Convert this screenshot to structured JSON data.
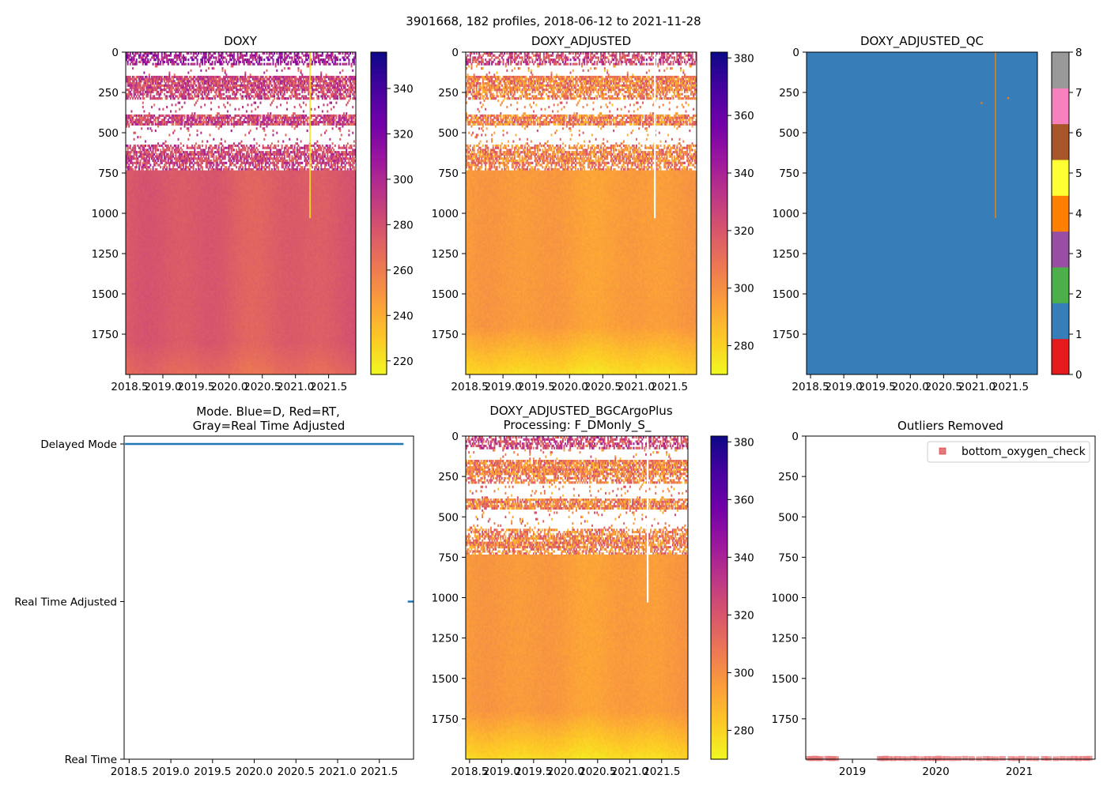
{
  "figure": {
    "suptitle": "3901668, 182 profiles, 2018-06-12 to 2021-11-28"
  },
  "colors": {
    "plasma": [
      "#0d0887",
      "#46039f",
      "#7201a8",
      "#9c179e",
      "#bd3786",
      "#d8576b",
      "#ed7953",
      "#fb9f3a",
      "#fdca26",
      "#f0f921"
    ],
    "qc_classes": [
      "#e41a1c",
      "#377eb8",
      "#4daf4a",
      "#984ea3",
      "#ff7f00",
      "#ffff33",
      "#a65628",
      "#f781bf",
      "#999999"
    ],
    "mode_line": "#1f77b4",
    "outlier": "#e8787a"
  },
  "chart_data": [
    {
      "id": "doxy",
      "type": "heatmap",
      "title": "DOXY",
      "x_ticks": [
        "2018.5",
        "2019.0",
        "2019.5",
        "2020.0",
        "2020.5",
        "2021.0",
        "2021.5"
      ],
      "x_tick_values": [
        2018.5,
        2019.0,
        2019.5,
        2020.0,
        2020.5,
        2021.0,
        2021.5
      ],
      "xlim": [
        2018.44,
        2021.91
      ],
      "y_ticks": [
        "0",
        "250",
        "500",
        "750",
        "1000",
        "1250",
        "1500",
        "1750"
      ],
      "y_tick_values": [
        0,
        250,
        500,
        750,
        1000,
        1250,
        1500,
        1750
      ],
      "ylim": [
        2000,
        0
      ],
      "colorbar": {
        "ticks": [
          "220",
          "240",
          "260",
          "280",
          "300",
          "320",
          "340"
        ],
        "tick_values": [
          220,
          240,
          260,
          280,
          300,
          320,
          340
        ],
        "range": [
          214,
          356
        ]
      }
    },
    {
      "id": "doxy_adjusted",
      "type": "heatmap",
      "title": "DOXY_ADJUSTED",
      "x_ticks": [
        "2018.5",
        "2019.0",
        "2019.5",
        "2020.0",
        "2020.5",
        "2021.0",
        "2021.5"
      ],
      "x_tick_values": [
        2018.5,
        2019.0,
        2019.5,
        2020.0,
        2020.5,
        2021.0,
        2021.5
      ],
      "xlim": [
        2018.44,
        2021.91
      ],
      "y_ticks": [
        "0",
        "250",
        "500",
        "750",
        "1000",
        "1250",
        "1500",
        "1750"
      ],
      "y_tick_values": [
        0,
        250,
        500,
        750,
        1000,
        1250,
        1500,
        1750
      ],
      "ylim": [
        2000,
        0
      ],
      "colorbar": {
        "ticks": [
          "280",
          "300",
          "320",
          "340",
          "360",
          "380"
        ],
        "tick_values": [
          280,
          300,
          320,
          340,
          360,
          380
        ],
        "range": [
          270,
          382
        ]
      }
    },
    {
      "id": "doxy_adjusted_qc",
      "type": "heatmap",
      "title": "DOXY_ADJUSTED_QC",
      "x_ticks": [
        "2018.5",
        "2019.0",
        "2019.5",
        "2020.0",
        "2020.5",
        "2021.0",
        "2021.5"
      ],
      "x_tick_values": [
        2018.5,
        2019.0,
        2019.5,
        2020.0,
        2020.5,
        2021.0,
        2021.5
      ],
      "xlim": [
        2018.44,
        2021.91
      ],
      "y_ticks": [
        "0",
        "250",
        "500",
        "750",
        "1000",
        "1250",
        "1500",
        "1750"
      ],
      "y_tick_values": [
        0,
        250,
        500,
        750,
        1000,
        1250,
        1500,
        1750
      ],
      "ylim": [
        2000,
        0
      ],
      "colorbar": {
        "ticks": [
          "0",
          "1",
          "2",
          "3",
          "4",
          "5",
          "6",
          "7",
          "8"
        ],
        "tick_values": [
          0,
          1,
          2,
          3,
          4,
          5,
          6,
          7,
          8
        ],
        "range": [
          0,
          8
        ]
      },
      "dominant_flag": 1,
      "flag4_profile_x": 2021.28,
      "flag4_profile_depth_max": 1030,
      "flag4_points": [
        {
          "x": 2021.07,
          "depth": 315
        },
        {
          "x": 2021.47,
          "depth": 285
        }
      ]
    },
    {
      "id": "mode",
      "type": "line",
      "title": "Mode. Blue=D, Red=RT,\nGray=Real Time Adjusted",
      "title_lines": [
        "Mode. Blue=D, Red=RT,",
        "Gray=Real Time Adjusted"
      ],
      "x_ticks": [
        "2018.5",
        "2019.0",
        "2019.5",
        "2020.0",
        "2020.5",
        "2021.0",
        "2021.5"
      ],
      "x_tick_values": [
        2018.5,
        2019.0,
        2019.5,
        2020.0,
        2020.5,
        2021.0,
        2021.5
      ],
      "xlim": [
        2018.44,
        2021.91
      ],
      "y_ticks": [
        "Delayed Mode",
        "Real Time Adjusted",
        "Real Time"
      ],
      "series": [
        {
          "name": "Delayed Mode",
          "level": 0,
          "x": [
            2018.45,
            2021.79
          ]
        },
        {
          "name": "Real Time Adjusted",
          "level": 1,
          "x": [
            2021.84,
            2021.91
          ]
        }
      ]
    },
    {
      "id": "doxy_adjusted_bgcargoplus",
      "type": "heatmap",
      "title": "DOXY_ADJUSTED_BGCArgoPlus\nProcessing: F_DMonly_S_",
      "title_lines": [
        "DOXY_ADJUSTED_BGCArgoPlus",
        "Processing: F_DMonly_S_"
      ],
      "x_ticks": [
        "2018.5",
        "2019.0",
        "2019.5",
        "2020.0",
        "2020.5",
        "2021.0",
        "2021.5"
      ],
      "x_tick_values": [
        2018.5,
        2019.0,
        2019.5,
        2020.0,
        2020.5,
        2021.0,
        2021.5
      ],
      "xlim": [
        2018.44,
        2021.91
      ],
      "y_ticks": [
        "0",
        "250",
        "500",
        "750",
        "1000",
        "1250",
        "1500",
        "1750"
      ],
      "y_tick_values": [
        0,
        250,
        500,
        750,
        1000,
        1250,
        1500,
        1750
      ],
      "ylim": [
        2000,
        0
      ],
      "colorbar": {
        "ticks": [
          "280",
          "300",
          "320",
          "340",
          "360",
          "380"
        ],
        "tick_values": [
          280,
          300,
          320,
          340,
          360,
          380
        ],
        "range": [
          270,
          382
        ]
      }
    },
    {
      "id": "outliers",
      "type": "scatter",
      "title": "Outliers Removed",
      "x_ticks": [
        "2019",
        "2020",
        "2021"
      ],
      "x_tick_values": [
        2019,
        2020,
        2021
      ],
      "xlim": [
        2018.44,
        2021.91
      ],
      "y_ticks": [
        "0",
        "250",
        "500",
        "750",
        "1000",
        "1250",
        "1500",
        "1750"
      ],
      "y_tick_values": [
        0,
        250,
        500,
        750,
        1000,
        1250,
        1500,
        1750
      ],
      "ylim": [
        2000,
        0
      ],
      "legend": {
        "label": "bottom_oxygen_check",
        "location": "upper right"
      },
      "series": [
        {
          "name": "bottom_oxygen_check",
          "x": [
            2018.48,
            2018.5,
            2018.52,
            2018.55,
            2018.57,
            2018.6,
            2018.62,
            2018.7,
            2018.72,
            2018.75,
            2018.77,
            2018.8,
            2019.33,
            2019.35,
            2019.38,
            2019.4,
            2019.44,
            2019.49,
            2019.54,
            2019.6,
            2019.66,
            2019.73,
            2019.77,
            2019.85,
            2019.9,
            2019.95,
            2020.0,
            2020.03,
            2020.07,
            2020.13,
            2020.2,
            2020.27,
            2020.35,
            2020.43,
            2020.52,
            2020.6,
            2020.65,
            2020.72,
            2020.8,
            2020.9,
            2020.96,
            2021.03,
            2021.12,
            2021.2,
            2021.3,
            2021.35,
            2021.44,
            2021.52,
            2021.6,
            2021.66,
            2021.71,
            2021.76,
            2021.81,
            2021.84
          ],
          "y": [
            1995,
            1996,
            1997,
            1993,
            1995,
            1997,
            1996,
            1994,
            1996,
            1997,
            1995,
            1996,
            1995,
            1997,
            1996,
            1993,
            1996,
            1997,
            1995,
            1996,
            1997,
            1994,
            1996,
            1997,
            1995,
            1996,
            1997,
            1993,
            1996,
            1995,
            1997,
            1996,
            1994,
            1996,
            1997,
            1995,
            1996,
            1997,
            1995,
            1996,
            1997,
            1994,
            1996,
            1997,
            1995,
            1996,
            1997,
            1995,
            1996,
            1994,
            1997,
            1995,
            1996,
            1994
          ]
        }
      ]
    }
  ]
}
